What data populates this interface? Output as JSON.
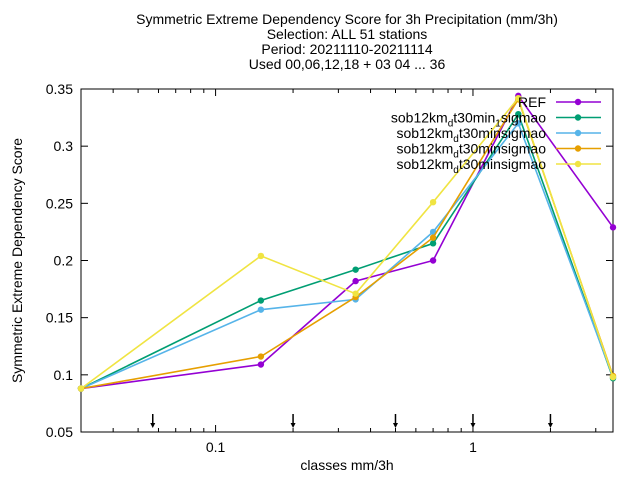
{
  "chart_data": {
    "type": "line",
    "title_lines": [
      "Symmetric Extreme Dependency Score  for 3h Precipitation (mm/3h)",
      "Selection: ALL      51 stations",
      "Period: 20211110-20211114",
      "Used 00,06,12,18 + 03 04 ... 36"
    ],
    "xlabel": "classes mm/3h",
    "ylabel": "Symmetric Extreme Dependency Score",
    "x_scale": "log",
    "xlim": [
      0.03,
      3.5
    ],
    "ylim": [
      0.05,
      0.35
    ],
    "x_ticks": [
      0.1,
      1
    ],
    "x_tick_labels": [
      "0.1",
      "1"
    ],
    "y_ticks": [
      0.05,
      0.1,
      0.15,
      0.2,
      0.25,
      0.3,
      0.35
    ],
    "y_tick_labels": [
      "0.05",
      "0.1",
      "0.15",
      "0.2",
      "0.25",
      "0.3",
      "0.35"
    ],
    "threshold_markers": [
      0.057,
      0.2,
      0.5,
      1.0,
      2.0
    ],
    "grid": false,
    "legend_position": "top-right",
    "x": [
      0.03,
      0.15,
      0.35,
      0.7,
      1.5,
      3.5
    ],
    "series": [
      {
        "name": "REF",
        "legend_main": "REF",
        "legend_sub": "",
        "legend_tail": "",
        "color": "#9400d3",
        "values": [
          0.088,
          0.109,
          0.182,
          0.2,
          0.344,
          0.229
        ]
      },
      {
        "name": "sob12km_dt30min_1sigmao",
        "legend_main": "sob12km",
        "legend_sub": "d",
        "legend_tail": "t30min",
        "legend_sub2": "1",
        "legend_tail2": "sigmao",
        "color": "#009e73",
        "values": [
          0.088,
          0.165,
          0.192,
          0.215,
          0.328,
          0.097
        ]
      },
      {
        "name": "sob12km_dt30min_sigmao",
        "legend_main": "sob12km",
        "legend_sub": "d",
        "legend_tail": "t30min",
        "legend_sub2": "",
        "legend_tail2": "sigmao",
        "color": "#56b4e9",
        "values": [
          0.088,
          0.157,
          0.166,
          0.225,
          0.32,
          0.098
        ]
      },
      {
        "name": "sob12km_dt30min_sigmao",
        "legend_main": "sob12km",
        "legend_sub": "d",
        "legend_tail": "t30min",
        "legend_sub2": "",
        "legend_tail2": "sigmao",
        "color": "#e69f00",
        "values": [
          0.088,
          0.116,
          0.168,
          0.22,
          0.341,
          0.099
        ]
      },
      {
        "name": "sob12km_dt30min_sigmao",
        "legend_main": "sob12km",
        "legend_sub": "d",
        "legend_tail": "t30min",
        "legend_sub2": "",
        "legend_tail2": "sigmao",
        "color": "#f0e442",
        "values": [
          0.088,
          0.204,
          0.171,
          0.251,
          0.342,
          0.098
        ]
      }
    ]
  }
}
